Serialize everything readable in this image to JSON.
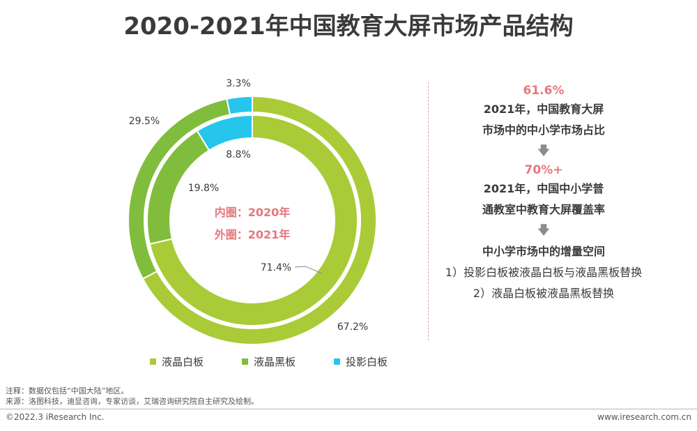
{
  "title": "2020-2021年中国教育大屏市场产品结构",
  "colors": {
    "lcd_white": "#a9cb37",
    "lcd_black": "#80bd3c",
    "projection": "#26c6ec",
    "highlight": "#e8767d"
  },
  "center": {
    "inner_label": "内圈：2020年",
    "outer_label": "外圈：2021年"
  },
  "chart_data": {
    "type": "pie",
    "categories": [
      "液晶白板",
      "液晶黑板",
      "投影白板"
    ],
    "series": [
      {
        "name": "外圈：2021年",
        "values": [
          67.2,
          29.5,
          3.3
        ]
      },
      {
        "name": "内圈：2020年",
        "values": [
          71.4,
          19.8,
          8.8
        ]
      }
    ],
    "labels": {
      "outer": [
        "67.2%",
        "29.5%",
        "3.3%"
      ],
      "inner": [
        "71.4%",
        "19.8%",
        "8.8%"
      ]
    },
    "legend_position": "bottom"
  },
  "legend": [
    "液晶白板",
    "液晶黑板",
    "投影白板"
  ],
  "right_panel": {
    "stat1": "61.6%",
    "stat1_line1": "2021年，中国教育大屏",
    "stat1_line2": "市场中的中小学市场占比",
    "arrow": "🡇",
    "stat2": "70%+",
    "stat2_line1": "2021年，中国中小学普",
    "stat2_line2": "通教室中教育大屏覆盖率",
    "conclusion_title": "中小学市场中的增量空间",
    "conclusion_1": "1）投影白板被液晶白板与液晶黑板替换",
    "conclusion_2": "2）液晶白板被液晶黑板替换"
  },
  "notes": {
    "note": "注释：数据仅包括“中国大陆”地区。",
    "source": "来源：洛图科技，迪显咨询，专家访谈，艾瑞咨询研究院自主研究及绘制。"
  },
  "footer": {
    "copyright": "©2022.3 iResearch Inc.",
    "website": "www.iresearch.com.cn"
  }
}
